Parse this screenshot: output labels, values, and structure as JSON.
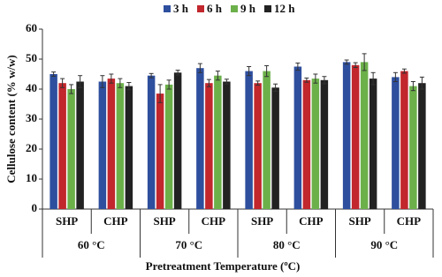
{
  "chart_data": {
    "type": "bar",
    "ylabel": "Cellulose content (% w/w)",
    "xlabel": "Pretreatment Temperature (ºC)",
    "categories": [
      "SHP",
      "CHP",
      "SHP",
      "CHP",
      "SHP",
      "CHP",
      "SHP",
      "CHP"
    ],
    "groups": [
      "60 °C",
      "70 °C",
      "80 °C",
      "90 °C"
    ],
    "series": [
      {
        "name": "3 h",
        "color": "#2e4f9e",
        "values": [
          45,
          42.5,
          44.5,
          47,
          46,
          47.5,
          49,
          44
        ],
        "errors": [
          0.7,
          2,
          0.7,
          1.5,
          1.5,
          1.2,
          0.7,
          1.5
        ]
      },
      {
        "name": "6 h",
        "color": "#c1272d",
        "values": [
          42,
          43.5,
          38.5,
          42,
          42,
          43,
          48,
          46
        ],
        "errors": [
          1.5,
          1.5,
          3,
          1.2,
          0.7,
          0.7,
          0.8,
          0.7
        ]
      },
      {
        "name": "9 h",
        "color": "#6cb04a",
        "values": [
          40,
          42,
          41.5,
          44.5,
          46,
          43.5,
          49,
          41
        ],
        "errors": [
          1.5,
          1.5,
          1.5,
          1.5,
          1.8,
          1.5,
          2.8,
          1.5
        ]
      },
      {
        "name": "12 h",
        "color": "#222222",
        "values": [
          42.5,
          41,
          45.5,
          42.5,
          40.5,
          43,
          43.5,
          42
        ],
        "errors": [
          2,
          1.2,
          0.8,
          0.8,
          1.2,
          1.2,
          2,
          2
        ]
      }
    ],
    "ylim": [
      0,
      60
    ],
    "yticks": [
      0,
      10,
      20,
      30,
      40,
      50,
      60
    ]
  }
}
